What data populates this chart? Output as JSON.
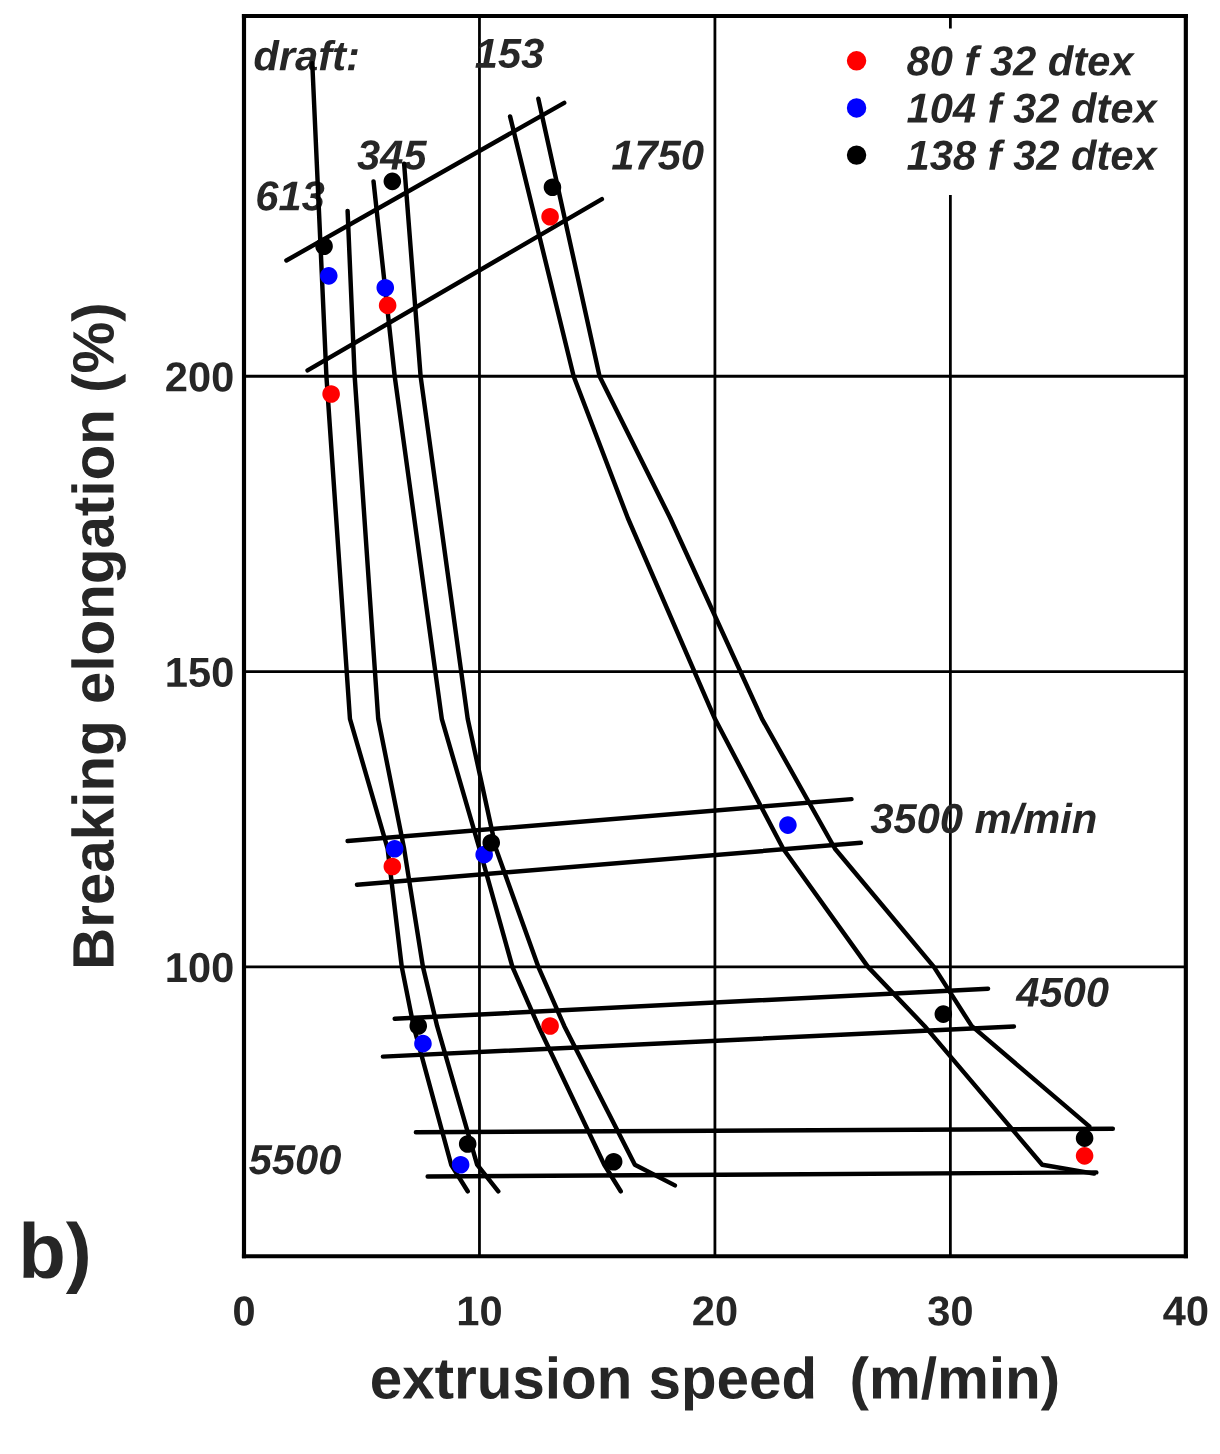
{
  "chart_data": {
    "type": "scatter",
    "xlabel": "extrusion speed  (m/min)",
    "ylabel": "Breaking elongation (%)",
    "xlim": [
      0,
      40
    ],
    "ylim": [
      51,
      261
    ],
    "xticks": [
      0,
      10,
      20,
      30,
      40
    ],
    "yticks": [
      100,
      150,
      200
    ],
    "grid": true,
    "legend": "top right",
    "series": [
      {
        "name": "80 f 32 dtex",
        "marker": "circle",
        "color": "#ff0000",
        "x": [
          3.7,
          6.1,
          13.0,
          6.3,
          13.0,
          35.7
        ],
        "values": [
          197,
          212,
          227,
          117,
          90,
          68
        ]
      },
      {
        "name": "104 f 32 dtex",
        "marker": "circle",
        "color": "#0000ff",
        "x": [
          3.6,
          6.0,
          6.4,
          10.2,
          23.1,
          7.6,
          9.2
        ],
        "values": [
          217,
          215,
          120,
          119,
          124,
          87,
          66.5
        ]
      },
      {
        "name": "138 f 32 dtex",
        "marker": "circle",
        "color": "#000000",
        "x": [
          3.4,
          6.3,
          13.1,
          10.5,
          7.4,
          29.7,
          9.5,
          15.7,
          35.7
        ],
        "values": [
          222,
          233,
          232,
          121,
          90,
          92,
          70,
          67,
          71
        ]
      },
      {
        "type": "line",
        "color": "#000000",
        "x": [
          2.9,
          3.5,
          4.5,
          6.1,
          6.7,
          7.2,
          8.8,
          9.5
        ],
        "values": [
          253,
          200,
          142,
          120,
          100,
          90,
          66.5,
          62
        ]
      },
      {
        "type": "line",
        "color": "#000000",
        "x": [
          4.4,
          4.7,
          5.7,
          6.8,
          7.6,
          8.2,
          9.9,
          10.8
        ],
        "values": [
          228,
          200,
          142,
          120,
          100,
          90,
          66.5,
          62
        ]
      },
      {
        "type": "line",
        "color": "#000000",
        "x": [
          5.5,
          6.4,
          8.4,
          10.0,
          11.4,
          12.5,
          15.3,
          16.0
        ],
        "values": [
          233,
          200,
          142,
          120,
          100,
          90,
          66.5,
          62
        ]
      },
      {
        "type": "line",
        "color": "#000000",
        "x": [
          6.8,
          7.5,
          9.5,
          10.7,
          12.5,
          13.6,
          16.6,
          18.3
        ],
        "values": [
          236,
          200,
          142,
          120,
          100,
          90,
          66.5,
          63
        ]
      },
      {
        "type": "line",
        "color": "#000000",
        "x": [
          11.3,
          14.0,
          16.3,
          20.0,
          22.9,
          26.5,
          28.9,
          33.9,
          36.1
        ],
        "values": [
          244,
          200,
          176,
          142,
          120,
          100,
          90,
          66.5,
          65
        ]
      },
      {
        "type": "line",
        "color": "#000000",
        "x": [
          12.5,
          15.1,
          18.1,
          22.0,
          25.1,
          29.3,
          30.9,
          35.9
        ],
        "values": [
          247,
          200,
          176,
          142,
          120,
          100,
          90,
          73
        ]
      },
      {
        "type": "line",
        "color": "#000000",
        "x": [
          1.8,
          13.6
        ],
        "values": [
          219.6,
          246.3
        ]
      },
      {
        "type": "line",
        "color": "#000000",
        "x": [
          2.7,
          15.2
        ],
        "values": [
          201,
          230
        ]
      },
      {
        "type": "line",
        "color": "#000000",
        "x": [
          4.4,
          25.8
        ],
        "values": [
          121.3,
          128.4
        ]
      },
      {
        "type": "line",
        "color": "#000000",
        "x": [
          4.8,
          26.2
        ],
        "values": [
          113.9,
          121
        ]
      },
      {
        "type": "line",
        "color": "#000000",
        "x": [
          6.4,
          31.6
        ],
        "values": [
          91.2,
          96.3
        ]
      },
      {
        "type": "line",
        "color": "#000000",
        "x": [
          5.9,
          32.7
        ],
        "values": [
          84.8,
          89.9
        ]
      },
      {
        "type": "line",
        "color": "#000000",
        "x": [
          7.3,
          36.9
        ],
        "values": [
          72,
          72.6
        ]
      },
      {
        "type": "line",
        "color": "#000000",
        "x": [
          7.8,
          36.2
        ],
        "values": [
          64.5,
          65.2
        ]
      }
    ],
    "annotations": [
      "draft:",
      "153",
      "345",
      "613",
      "1750",
      "3500 m/min",
      "4500",
      "5500",
      "b)"
    ]
  }
}
